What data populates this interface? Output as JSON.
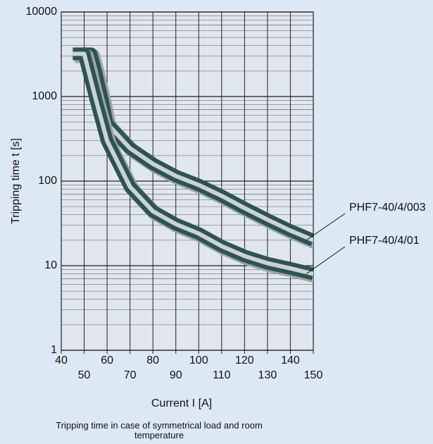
{
  "chart_data": {
    "type": "line",
    "xlabel": "Current I [A]",
    "ylabel": "Tripping time t [s]",
    "caption": "Tripping time in case of symmetrical load and room temperature",
    "xlim": [
      40,
      150
    ],
    "xticks": [
      40,
      50,
      60,
      70,
      80,
      90,
      100,
      110,
      120,
      130,
      140,
      150
    ],
    "ylim": [
      1,
      10000
    ],
    "yticks": [
      1,
      10,
      100,
      1000,
      10000
    ],
    "ylog": true,
    "grid": true,
    "minor_grid": true,
    "series": [
      {
        "name": "PHF7-40/4/003",
        "color": "#2f5350",
        "x": [
          49,
          53,
          55,
          58,
          60,
          70,
          80,
          90,
          100,
          110,
          120,
          130,
          140,
          150
        ],
        "values": [
          3200,
          3200,
          2000,
          900,
          480,
          245,
          160,
          115,
          90,
          67,
          48,
          35,
          26,
          20
        ]
      },
      {
        "name": "PHF7-40/4/01",
        "color": "#2f5350",
        "x": [
          45,
          50,
          55,
          60,
          70,
          80,
          90,
          100,
          110,
          120,
          130,
          140,
          150
        ],
        "values": [
          3200,
          3200,
          950,
          300,
          86,
          44,
          31,
          24,
          17,
          13,
          10.7,
          9.3,
          8
        ]
      }
    ]
  }
}
